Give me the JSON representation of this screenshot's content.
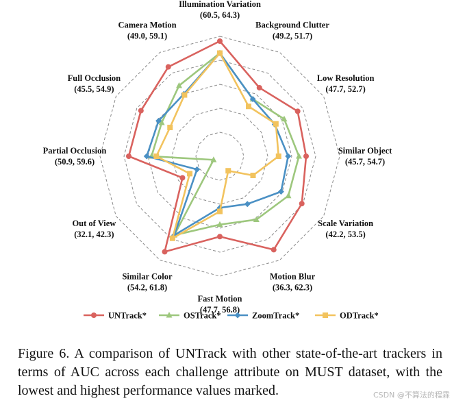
{
  "chart_data": {
    "type": "radar",
    "axes": [
      {
        "name": "Illumination Variation",
        "range": "(60.5, 64.3)"
      },
      {
        "name": "Background Clutter",
        "range": "(49.2, 51.7)"
      },
      {
        "name": "Low Resolution",
        "range": "(47.7, 52.7)"
      },
      {
        "name": "Similar Object",
        "range": "(45.7, 54.7)"
      },
      {
        "name": "Scale Variation",
        "range": "(42.2, 53.5)"
      },
      {
        "name": "Motion Blur",
        "range": "(36.3, 62.3)"
      },
      {
        "name": "Fast Motion",
        "range": "(47.7, 56.8)"
      },
      {
        "name": "Similar Color",
        "range": "(54.2, 61.8)"
      },
      {
        "name": "Out of View",
        "range": "(32.1, 42.3)"
      },
      {
        "name": "Partial Occlusion",
        "range": "(50.9, 59.6)"
      },
      {
        "name": "Full Occlusion",
        "range": "(45.5, 54.9)"
      },
      {
        "name": "Camera Motion",
        "range": "(49.0, 59.1)"
      }
    ],
    "series": [
      {
        "name": "UNTrack*",
        "color": "#d9625e",
        "marker": "circle",
        "values": [
          0.96,
          0.66,
          0.75,
          0.72,
          0.79,
          0.9,
          0.67,
          0.92,
          0.36,
          0.76,
          0.76,
          0.86
        ]
      },
      {
        "name": "OSTrack*",
        "color": "#9dc77d",
        "marker": "triangle",
        "values": [
          0.86,
          0.55,
          0.62,
          0.66,
          0.66,
          0.61,
          0.57,
          0.76,
          0.06,
          0.57,
          0.56,
          0.68
        ]
      },
      {
        "name": "ZoomTrack*",
        "color": "#4a90c4",
        "marker": "diamond",
        "values": [
          0.86,
          0.55,
          0.53,
          0.57,
          0.59,
          0.46,
          0.43,
          0.76,
          0.22,
          0.61,
          0.59,
          0.6
        ]
      },
      {
        "name": "ODTrack*",
        "color": "#f2c35e",
        "marker": "square",
        "values": [
          0.86,
          0.48,
          0.54,
          0.49,
          0.32,
          0.14,
          0.46,
          0.79,
          0.29,
          0.53,
          0.48,
          0.59
        ]
      }
    ],
    "rings": 5,
    "legend_position": "bottom"
  },
  "caption": "Figure 6.  A comparison of UNTrack with other state-of-the-art trackers in terms of AUC across each challenge attribute on MUST dataset, with the lowest and highest performance values marked.",
  "watermark": "CSDN @不算法的程霖"
}
